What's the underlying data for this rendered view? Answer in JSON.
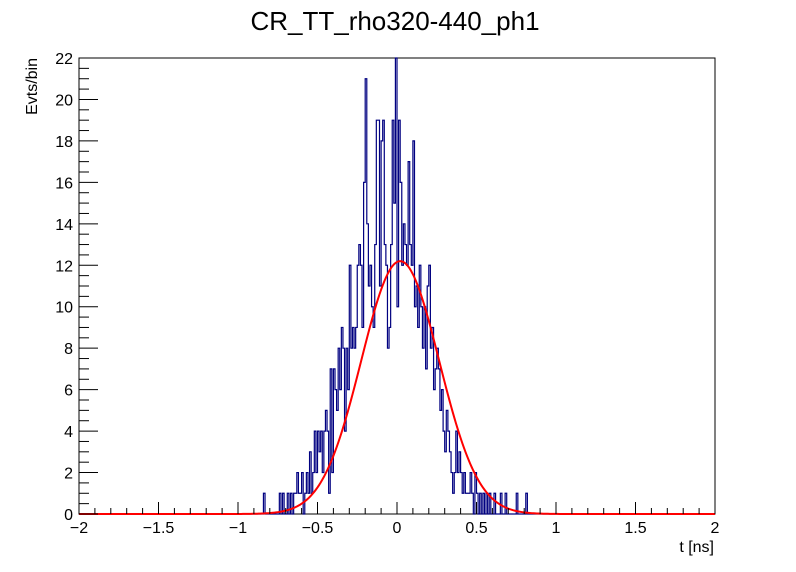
{
  "chart_data": {
    "type": "histogram",
    "title": "CR_TT_rho320-440_ph1",
    "xlabel": "t [ns]",
    "ylabel": "Evts/bin",
    "xlim": [
      -2,
      2
    ],
    "ylim": [
      0,
      22
    ],
    "grid": false,
    "xticks": [
      -2,
      -1.5,
      -1,
      -0.5,
      0,
      0.5,
      1,
      1.5,
      2
    ],
    "xtick_labels": [
      "−2",
      "−1.5",
      "−1",
      "−0.5",
      "0",
      "0.5",
      "1",
      "1.5",
      "2"
    ],
    "yticks": [
      0,
      2,
      4,
      6,
      8,
      10,
      12,
      14,
      16,
      18,
      20,
      22
    ],
    "ytick_labels": [
      "0",
      "2",
      "4",
      "6",
      "8",
      "10",
      "12",
      "14",
      "16",
      "18",
      "20",
      "22"
    ],
    "histogram": {
      "name": "",
      "color": "#000080",
      "bin_edges_range": [
        -0.84,
        0.86
      ],
      "bin_width": 0.01,
      "counts": [
        1,
        0,
        0,
        0,
        0,
        0,
        0,
        0,
        0,
        0,
        1,
        0,
        1,
        0,
        0,
        1,
        0,
        1,
        0,
        1,
        1,
        2,
        1,
        1,
        2,
        0,
        1,
        2,
        1,
        3,
        1,
        2,
        4,
        2,
        4,
        3,
        4,
        2,
        4,
        5,
        4,
        1,
        7,
        2,
        7,
        6,
        5,
        8,
        6,
        9,
        8,
        4,
        8,
        6,
        12,
        8,
        9,
        8,
        9,
        12,
        13,
        12,
        9,
        16,
        21,
        14,
        11,
        12,
        10,
        9,
        13,
        19,
        19,
        11,
        18,
        19,
        13,
        12,
        8,
        9,
        13,
        19,
        15,
        22,
        10,
        19,
        16,
        12,
        14,
        13,
        12,
        17,
        13,
        12,
        18,
        10,
        11,
        9,
        12,
        10,
        8,
        10,
        7,
        11,
        12,
        8,
        9,
        6,
        7,
        8,
        7,
        5,
        6,
        4,
        3,
        5,
        4,
        3,
        2,
        1,
        2,
        4,
        2,
        3,
        2,
        1,
        2,
        1,
        1,
        1,
        2,
        1,
        0,
        2,
        1,
        0,
        1,
        0,
        1,
        0,
        1,
        0,
        1,
        0,
        0,
        1,
        0,
        0,
        0,
        1,
        0,
        0,
        1,
        0,
        0,
        0,
        0,
        0,
        0,
        1,
        0,
        0,
        0,
        0,
        0,
        1,
        0,
        0,
        0,
        0
      ]
    },
    "fit": {
      "type": "gaussian",
      "color": "#ff0000",
      "amplitude": 12.2,
      "mean": 0.02,
      "sigma": 0.245,
      "x_range": [
        -2,
        2
      ]
    }
  }
}
